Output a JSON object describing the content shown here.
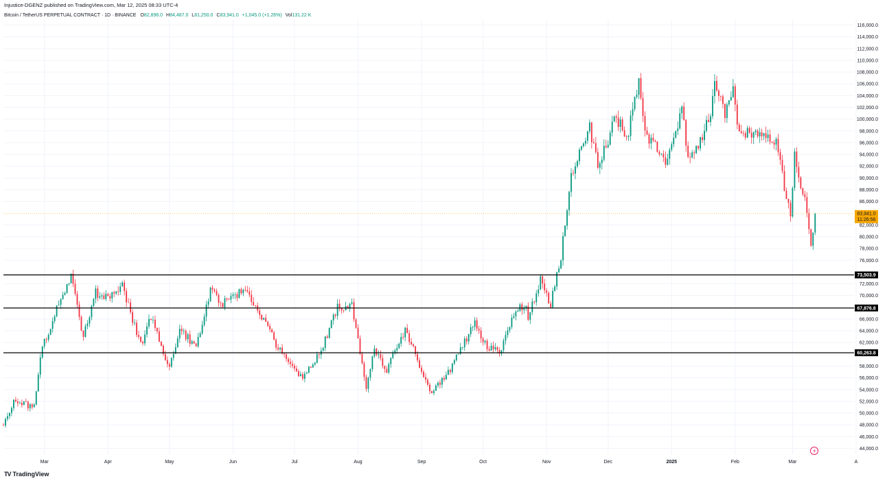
{
  "header": {
    "published": "Injustice-DGENZ published on TradingView.com, Mar 12, 2025 08:33 UTC-4",
    "symbol": "Bitcoin / TetherUS PERPETUAL CONTRACT · 1D · BINANCE",
    "ohlc": {
      "o_label": "O",
      "o": "82,896.0",
      "h_label": "H",
      "h": "84,487.0",
      "l_label": "L",
      "l": "81,250.0",
      "c_label": "C",
      "c": "83,941.0",
      "change": "+1,045.0 (+1.26%)",
      "vol_label": "Vol",
      "vol": "131.22 K"
    }
  },
  "footer": {
    "brand": "TradingView"
  },
  "colors": {
    "up": "#089981",
    "down": "#f23645",
    "grid": "#f0f3fa",
    "axis_text": "#131722",
    "price_tag": "#f7a600",
    "level_line": "#000000"
  },
  "chart_data": {
    "type": "candlestick",
    "interval": "1D",
    "ylim": [
      43000,
      117000
    ],
    "xlim": [
      "2024-02-10",
      "2025-03-31"
    ],
    "y_ticks": [
      "116,000.0",
      "114,000.0",
      "112,000.0",
      "110,000.0",
      "108,000.0",
      "106,000.0",
      "104,000.0",
      "102,000.0",
      "100,000.0",
      "98,000.0",
      "96,000.0",
      "94,000.0",
      "92,000.0",
      "90,000.0",
      "88,000.0",
      "86,000.0",
      "82,000.0",
      "80,000.0",
      "78,000.0",
      "76,000.0",
      "72,000.0",
      "70,000.0",
      "66,000.0",
      "64,000.0",
      "62,000.0",
      "58,000.0",
      "56,000.0",
      "54,000.0",
      "52,000.0",
      "50,000.0",
      "48,000.0",
      "46,000.0",
      "44,000.0"
    ],
    "x_ticks": [
      {
        "label": "Mar",
        "date": "2024-03-01"
      },
      {
        "label": "Apr",
        "date": "2024-04-01"
      },
      {
        "label": "May",
        "date": "2024-05-01"
      },
      {
        "label": "Jun",
        "date": "2024-06-01"
      },
      {
        "label": "Jul",
        "date": "2024-07-01"
      },
      {
        "label": "Aug",
        "date": "2024-08-01"
      },
      {
        "label": "Sep",
        "date": "2024-09-01"
      },
      {
        "label": "Oct",
        "date": "2024-10-01"
      },
      {
        "label": "Nov",
        "date": "2024-11-01"
      },
      {
        "label": "Dec",
        "date": "2024-12-01"
      },
      {
        "label": "2025",
        "date": "2025-01-01",
        "bold": true
      },
      {
        "label": "Feb",
        "date": "2025-02-01"
      },
      {
        "label": "Mar",
        "date": "2025-03-01"
      },
      {
        "label": "A",
        "date": "2025-04-01"
      }
    ],
    "horizontal_levels": [
      {
        "value": 73503.9,
        "label": "73,503.9"
      },
      {
        "value": 67876.8,
        "label": "67,876.8"
      },
      {
        "value": 60263.8,
        "label": "60,263.8"
      }
    ],
    "last_price": {
      "value": 83941.0,
      "label": "83,941.0",
      "countdown": "11:26:56"
    },
    "close_path": [
      [
        "2024-02-10",
        48000
      ],
      [
        "2024-02-15",
        52000
      ],
      [
        "2024-02-25",
        51000
      ],
      [
        "2024-02-28",
        60000
      ],
      [
        "2024-03-05",
        66000
      ],
      [
        "2024-03-14",
        73000
      ],
      [
        "2024-03-20",
        63000
      ],
      [
        "2024-03-26",
        70500
      ],
      [
        "2024-04-01",
        69500
      ],
      [
        "2024-04-08",
        71500
      ],
      [
        "2024-04-17",
        61500
      ],
      [
        "2024-04-22",
        66500
      ],
      [
        "2024-05-01",
        57500
      ],
      [
        "2024-05-06",
        64000
      ],
      [
        "2024-05-14",
        61500
      ],
      [
        "2024-05-21",
        71000
      ],
      [
        "2024-05-26",
        68500
      ],
      [
        "2024-06-04",
        70500
      ],
      [
        "2024-06-07",
        71500
      ],
      [
        "2024-06-24",
        60500
      ],
      [
        "2024-07-05",
        56000
      ],
      [
        "2024-07-14",
        60500
      ],
      [
        "2024-07-22",
        68000
      ],
      [
        "2024-07-29",
        68500
      ],
      [
        "2024-08-05",
        54000
      ],
      [
        "2024-08-09",
        61000
      ],
      [
        "2024-08-15",
        57500
      ],
      [
        "2024-08-24",
        64000
      ],
      [
        "2024-09-06",
        53500
      ],
      [
        "2024-09-16",
        58000
      ],
      [
        "2024-09-27",
        65500
      ],
      [
        "2024-10-03",
        61000
      ],
      [
        "2024-10-10",
        60500
      ],
      [
        "2024-10-15",
        66500
      ],
      [
        "2024-10-21",
        68500
      ],
      [
        "2024-10-23",
        66500
      ],
      [
        "2024-10-29",
        72500
      ],
      [
        "2024-11-03",
        68500
      ],
      [
        "2024-11-08",
        76500
      ],
      [
        "2024-11-13",
        90500
      ],
      [
        "2024-11-22",
        98500
      ],
      [
        "2024-11-26",
        92000
      ],
      [
        "2024-12-05",
        100500
      ],
      [
        "2024-12-10",
        96500
      ],
      [
        "2024-12-16",
        106500
      ],
      [
        "2024-12-19",
        97500
      ],
      [
        "2024-12-30",
        92500
      ],
      [
        "2025-01-06",
        102000
      ],
      [
        "2025-01-09",
        93000
      ],
      [
        "2025-01-13",
        94500
      ],
      [
        "2025-01-20",
        101500
      ],
      [
        "2025-01-22",
        106000
      ],
      [
        "2025-01-27",
        101000
      ],
      [
        "2025-01-31",
        104500
      ],
      [
        "2025-02-03",
        97500
      ],
      [
        "2025-02-10",
        97500
      ],
      [
        "2025-02-21",
        96000
      ],
      [
        "2025-02-25",
        88500
      ],
      [
        "2025-02-28",
        84000
      ],
      [
        "2025-03-02",
        94000
      ],
      [
        "2025-03-07",
        86000
      ],
      [
        "2025-03-10",
        78500
      ],
      [
        "2025-03-12",
        83941
      ]
    ]
  }
}
